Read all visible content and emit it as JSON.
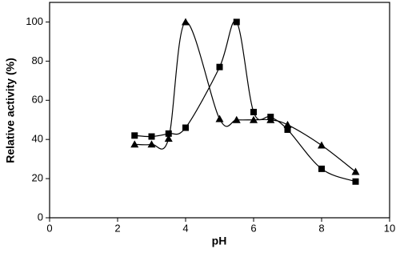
{
  "chart_data": {
    "type": "line",
    "xlabel": "pH",
    "ylabel": "Relative activity (%)",
    "x": [
      2.5,
      3,
      3.5,
      4,
      5,
      5.5,
      6,
      6.5,
      7,
      8,
      9
    ],
    "series": [
      {
        "marker": "square",
        "color": "#000000",
        "values": [
          42,
          41.5,
          43,
          46,
          77,
          100,
          54,
          51.5,
          45,
          25,
          18.5
        ]
      },
      {
        "marker": "triangle",
        "color": "#000000",
        "values": [
          37.5,
          37.5,
          40.5,
          100,
          50.5,
          50,
          50,
          50,
          47.5,
          37,
          23.5
        ]
      }
    ],
    "xlim": [
      0,
      10
    ],
    "xticks": [
      0,
      2,
      4,
      6,
      8,
      10
    ],
    "ylim": [
      0,
      110
    ],
    "yticks": [
      0,
      20,
      40,
      60,
      80,
      100
    ]
  }
}
